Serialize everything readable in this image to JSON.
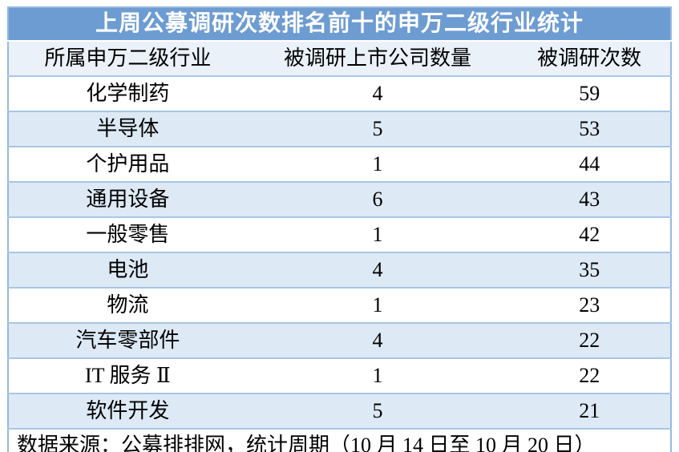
{
  "chart_data": {
    "type": "table",
    "title": "上周公募调研次数排名前十的申万二级行业统计",
    "columns": [
      "所属申万二级行业",
      "被调研上市公司数量",
      "被调研次数"
    ],
    "rows": [
      [
        "化学制药",
        "4",
        "59"
      ],
      [
        "半导体",
        "5",
        "53"
      ],
      [
        "个护用品",
        "1",
        "44"
      ],
      [
        "通用设备",
        "6",
        "43"
      ],
      [
        "一般零售",
        "1",
        "42"
      ],
      [
        "电池",
        "4",
        "35"
      ],
      [
        "物流",
        "1",
        "23"
      ],
      [
        "汽车零部件",
        "4",
        "22"
      ],
      [
        "IT 服务 Ⅱ",
        "1",
        "22"
      ],
      [
        "软件开发",
        "5",
        "21"
      ]
    ],
    "footnote": "数据来源：公募排排网，统计周期（10 月 14 日至 10 月 20 日）"
  },
  "colors": {
    "title_bg": "#6d9cd2",
    "title_text": "#ffffff",
    "header_bg": "#eaf1f8",
    "stripe_bg": "#dde9f5",
    "row_bg": "#ffffff",
    "divider": "#a8c6e6",
    "border": "#96b8dd",
    "text": "#000000"
  }
}
